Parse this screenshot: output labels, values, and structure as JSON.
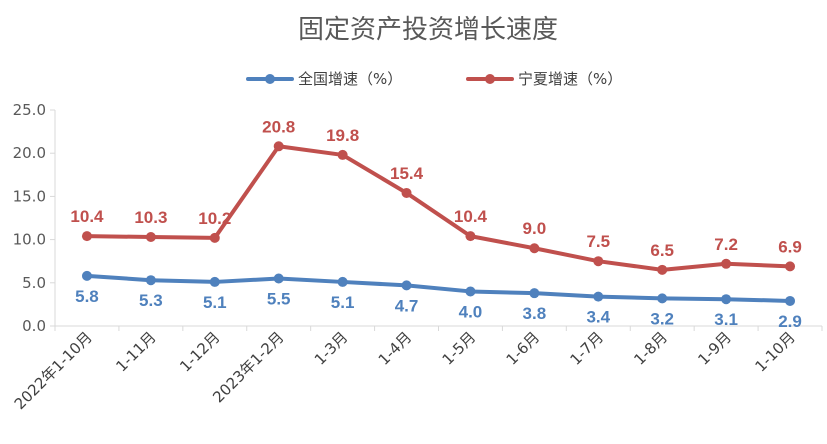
{
  "chart_data": {
    "type": "line",
    "title": "固定资产投资增长速度",
    "xlabel": "",
    "ylabel": "",
    "categories": [
      "2022年1-10月",
      "1-11月",
      "1-12月",
      "2023年1-2月",
      "1-3月",
      "1-4月",
      "1-5月",
      "1-6月",
      "1-7月",
      "1-8月",
      "1-9月",
      "1-10月"
    ],
    "ylim": [
      0,
      25
    ],
    "yticks": [
      "0.0",
      "5.0",
      "10.0",
      "15.0",
      "20.0",
      "25.0"
    ],
    "grid": false,
    "legend": "top",
    "series": [
      {
        "name": "全国增速（%）",
        "color": "#4f81bd",
        "values": [
          5.8,
          5.3,
          5.1,
          5.5,
          5.1,
          4.7,
          4.0,
          3.8,
          3.4,
          3.2,
          3.1,
          2.9
        ],
        "labels": [
          "5.8",
          "5.3",
          "5.1",
          "5.5",
          "5.1",
          "4.7",
          "4.0",
          "3.8",
          "3.4",
          "3.2",
          "3.1",
          "2.9"
        ],
        "label_position": "below"
      },
      {
        "name": "宁夏增速（%）",
        "color": "#c0504d",
        "values": [
          10.4,
          10.3,
          10.2,
          20.8,
          19.8,
          15.4,
          10.4,
          9.0,
          7.5,
          6.5,
          7.2,
          6.9
        ],
        "labels": [
          "10.4",
          "10.3",
          "10.2",
          "20.8",
          "19.8",
          "15.4",
          "10.4",
          "9.0",
          "7.5",
          "6.5",
          "7.2",
          "6.9"
        ],
        "label_position": "above"
      }
    ]
  }
}
